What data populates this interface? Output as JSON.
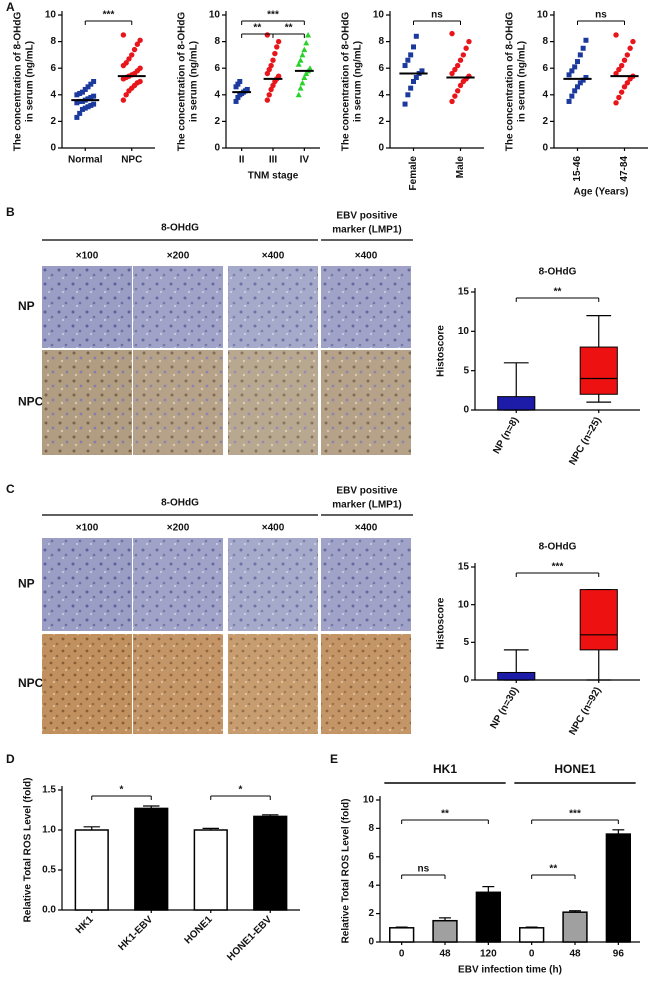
{
  "panel_labels": [
    "A",
    "B",
    "C",
    "D",
    "E"
  ],
  "histology": [
    {
      "group_label": "8-OHdG",
      "marker_label": [
        "EBV positive",
        "marker (LMP1)"
      ],
      "magnifications": [
        "×100",
        "×200",
        "×400",
        "×400"
      ],
      "rows": [
        "NP",
        "NPC"
      ]
    },
    {
      "group_label": "8-OHdG",
      "marker_label": [
        "EBV positive",
        "marker (LMP1)"
      ],
      "magnifications": [
        "×100",
        "×200",
        "×400",
        "×400"
      ],
      "rows": [
        "NP",
        "NPC"
      ]
    }
  ],
  "chart_data": [
    {
      "type": "dotplot",
      "ylabel": [
        "The concentration of 8-OHdG",
        "in serum (ng/mL)"
      ],
      "ylim": [
        0,
        10
      ],
      "yticks": [
        0,
        2,
        4,
        6,
        8,
        10
      ],
      "groups": [
        {
          "name": "Normal",
          "color": "#1c3a9e",
          "marker": "square",
          "mean": 3.6,
          "values": [
            2.3,
            2.6,
            2.9,
            3.0,
            3.1,
            3.2,
            3.3,
            3.4,
            3.5,
            3.5,
            3.6,
            3.7,
            3.8,
            3.9,
            4.0,
            4.1,
            4.2,
            4.4,
            4.6,
            4.8,
            5.0
          ]
        },
        {
          "name": "NPC",
          "color": "#e8151b",
          "marker": "circle",
          "mean": 5.4,
          "values": [
            3.6,
            4.0,
            4.3,
            4.5,
            4.7,
            4.9,
            5.0,
            5.2,
            5.3,
            5.4,
            5.5,
            5.6,
            5.8,
            6.0,
            6.2,
            6.4,
            6.7,
            7.0,
            7.4,
            7.8,
            8.1,
            8.5
          ]
        }
      ],
      "significance": [
        {
          "from": 0,
          "to": 1,
          "label": "***"
        }
      ]
    },
    {
      "type": "dotplot",
      "ylabel": [
        "The concentration of 8-OHdG",
        "in serum (ng/mL)"
      ],
      "xlabel": "TNM stage",
      "ylim": [
        0,
        10
      ],
      "yticks": [
        0,
        2,
        4,
        6,
        8,
        10
      ],
      "groups": [
        {
          "name": "II",
          "color": "#1c3a9e",
          "marker": "square",
          "mean": 4.2,
          "values": [
            3.5,
            3.8,
            4.0,
            4.1,
            4.2,
            4.3,
            4.4,
            4.6,
            4.8,
            5.0
          ]
        },
        {
          "name": "III",
          "color": "#e8151b",
          "marker": "circle",
          "mean": 5.2,
          "values": [
            3.6,
            4.0,
            4.4,
            4.7,
            5.0,
            5.2,
            5.4,
            5.6,
            5.9,
            6.2,
            6.6,
            7.1,
            7.6,
            8.0,
            8.5
          ]
        },
        {
          "name": "IV",
          "color": "#2bd12b",
          "marker": "triangle",
          "mean": 5.8,
          "values": [
            4.0,
            4.5,
            4.9,
            5.3,
            5.6,
            5.8,
            6.0,
            6.3,
            6.6,
            7.0,
            7.4,
            7.9,
            8.5
          ]
        }
      ],
      "significance": [
        {
          "from": 0,
          "to": 2,
          "label": "***"
        },
        {
          "from": 0,
          "to": 1,
          "label": "**"
        },
        {
          "from": 1,
          "to": 2,
          "label": "**"
        }
      ]
    },
    {
      "type": "dotplot",
      "ylabel": [
        "The concentration of 8-OHdG",
        "in serum (ng/mL)"
      ],
      "ylim": [
        0,
        10
      ],
      "yticks": [
        0,
        2,
        4,
        6,
        8,
        10
      ],
      "groups": [
        {
          "name": "Female",
          "color": "#1c3a9e",
          "marker": "square",
          "mean": 5.6,
          "values": [
            3.3,
            4.0,
            4.5,
            5.0,
            5.3,
            5.6,
            5.8,
            6.2,
            6.6,
            7.0,
            7.6,
            8.4
          ]
        },
        {
          "name": "Male",
          "color": "#e8151b",
          "marker": "circle",
          "mean": 5.3,
          "values": [
            3.5,
            3.9,
            4.3,
            4.7,
            5.0,
            5.2,
            5.4,
            5.6,
            5.9,
            6.2,
            6.6,
            7.0,
            7.5,
            8.0,
            8.6
          ]
        }
      ],
      "significance": [
        {
          "from": 0,
          "to": 1,
          "label": "ns"
        }
      ]
    },
    {
      "type": "dotplot",
      "ylabel": [
        "The concentration of 8-OHdG",
        "in serum (ng/mL)"
      ],
      "xlabel": "Age (Years)",
      "ylim": [
        0,
        10
      ],
      "yticks": [
        0,
        2,
        4,
        6,
        8,
        10
      ],
      "groups": [
        {
          "name": "15-46",
          "color": "#1c3a9e",
          "marker": "square",
          "mean": 5.2,
          "values": [
            3.5,
            3.9,
            4.3,
            4.6,
            4.9,
            5.1,
            5.3,
            5.5,
            5.8,
            6.1,
            6.5,
            7.0,
            7.5,
            8.1
          ]
        },
        {
          "name": "47-84",
          "color": "#e8151b",
          "marker": "circle",
          "mean": 5.4,
          "values": [
            3.4,
            3.8,
            4.2,
            4.6,
            4.9,
            5.2,
            5.4,
            5.6,
            5.9,
            6.2,
            6.6,
            7.0,
            7.5,
            8.0,
            8.5
          ]
        }
      ],
      "significance": [
        {
          "from": 0,
          "to": 1,
          "label": "ns"
        }
      ]
    },
    {
      "type": "box",
      "title": "8-OHdG",
      "ylabel": "Histoscore",
      "ylim": [
        0,
        15
      ],
      "yticks": [
        0,
        5,
        10,
        15
      ],
      "groups": [
        {
          "name": "NP (n=8)",
          "color": "#1c1ca8",
          "min": 0,
          "q1": 0,
          "median": 0,
          "q3": 1.7,
          "max": 6
        },
        {
          "name": "NPC (n=25)",
          "color": "#ee1111",
          "min": 1,
          "q1": 2,
          "median": 4,
          "q3": 8,
          "max": 12
        }
      ],
      "significance": [
        {
          "from": 0,
          "to": 1,
          "label": "**"
        }
      ]
    },
    {
      "type": "box",
      "title": "8-OHdG",
      "ylabel": "Histoscore",
      "ylim": [
        0,
        15
      ],
      "yticks": [
        0,
        5,
        10,
        15
      ],
      "groups": [
        {
          "name": "NP (n=30)",
          "color": "#1c1ca8",
          "min": 0,
          "q1": 0,
          "median": 0,
          "q3": 1,
          "max": 4
        },
        {
          "name": "NPC (n=92)",
          "color": "#ee1111",
          "min": 0,
          "q1": 4,
          "median": 6,
          "q3": 12,
          "max": 12
        }
      ],
      "significance": [
        {
          "from": 0,
          "to": 1,
          "label": "***"
        }
      ]
    },
    {
      "type": "bar",
      "ylabel": "Relative Total ROS Level (fold)",
      "ylim": [
        0,
        1.5
      ],
      "yticks": [
        {
          "value": 0,
          "label": "0.0"
        },
        0.5,
        {
          "value": 1,
          "label": "1.0"
        },
        1.5
      ],
      "categories": [
        "HK1",
        "HK1-EBV",
        "HONE1",
        "HONE1-EBV"
      ],
      "values": [
        1.0,
        1.27,
        1.0,
        1.17
      ],
      "errors": [
        0.04,
        0.03,
        0.02,
        0.02
      ],
      "colors": [
        "#ffffff",
        "#000000",
        "#ffffff",
        "#000000"
      ],
      "significance": [
        {
          "from": 0,
          "to": 1,
          "label": "*"
        },
        {
          "from": 2,
          "to": 3,
          "label": "*"
        }
      ]
    },
    {
      "type": "bar",
      "ylabel": "Relative Total ROS Level (fold)",
      "xlabel": "EBV infection time (h)",
      "ylim": [
        0,
        10
      ],
      "yticks": [
        0,
        2,
        4,
        6,
        8,
        10
      ],
      "categories": [
        "0",
        "48",
        "120",
        "0",
        "48",
        "96"
      ],
      "values": [
        1.0,
        1.5,
        3.5,
        1.0,
        2.1,
        7.6
      ],
      "errors": [
        0.05,
        0.2,
        0.4,
        0.05,
        0.1,
        0.3
      ],
      "colors": [
        "#ffffff",
        "#a0a0a0",
        "#000000",
        "#ffffff",
        "#a0a0a0",
        "#000000"
      ],
      "bar_groups": [
        {
          "label": "HK1",
          "from": 0,
          "to": 2
        },
        {
          "label": "HONE1",
          "from": 3,
          "to": 5
        }
      ],
      "significance": [
        {
          "from": 0,
          "to": 2,
          "label": "**"
        },
        {
          "from": 0,
          "to": 1,
          "label": "ns"
        },
        {
          "from": 3,
          "to": 5,
          "label": "***"
        },
        {
          "from": 3,
          "to": 4,
          "label": "**"
        }
      ]
    }
  ]
}
